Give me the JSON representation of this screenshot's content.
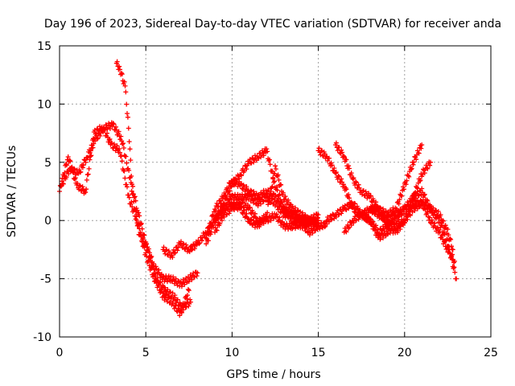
{
  "chart_data": {
    "type": "scatter",
    "title": "Day 196 of 2023, Sidereal Day-to-day VTEC variation (SDTVAR) for receiver anda",
    "xlabel": "GPS time / hours",
    "ylabel": "SDTVAR / TECUs",
    "xlim": [
      0,
      25
    ],
    "ylim": [
      -10,
      15
    ],
    "xticks": [
      0,
      5,
      10,
      15,
      20,
      25
    ],
    "yticks": [
      -10,
      -5,
      0,
      5,
      10,
      15
    ],
    "xtick_labels": [
      "0",
      "5",
      "10",
      "15",
      "20",
      "25"
    ],
    "ytick_labels": [
      "-10",
      "-5",
      "0",
      "5",
      "10",
      "15"
    ],
    "grid": true,
    "marker": "+",
    "color": "#ff0000",
    "series": [
      {
        "name": "track-1",
        "x": [
          0.0,
          0.5,
          1.0,
          1.5,
          2.0,
          2.5,
          3.0,
          3.5,
          4.0,
          4.5,
          5.0,
          5.5,
          6.0,
          6.5,
          7.0,
          7.5
        ],
        "y": [
          2.5,
          5.5,
          3.0,
          2.5,
          7.5,
          8.0,
          6.5,
          6.0,
          2.0,
          0.0,
          -3.0,
          -5.0,
          -6.5,
          -7.0,
          -8.0,
          -6.0
        ]
      },
      {
        "name": "track-2",
        "x": [
          0.1,
          0.6,
          1.1,
          1.6,
          2.1,
          2.6,
          3.1,
          3.6,
          4.1,
          4.6,
          5.1,
          5.6,
          6.1,
          6.6,
          7.1,
          7.6
        ],
        "y": [
          3.0,
          4.5,
          4.0,
          5.5,
          7.0,
          8.0,
          8.2,
          7.0,
          3.5,
          -1.0,
          -2.5,
          -5.0,
          -6.0,
          -6.5,
          -7.5,
          -7.0
        ]
      },
      {
        "name": "track-3",
        "x": [
          3.3,
          3.5,
          3.8,
          4.0,
          4.2,
          4.5,
          5.0,
          5.5,
          6.0,
          6.5,
          7.0,
          7.5,
          8.0
        ],
        "y": [
          13.5,
          13.0,
          11.5,
          8.0,
          3.0,
          1.0,
          -2.0,
          -4.0,
          -5.0,
          -5.0,
          -5.5,
          -5.0,
          -4.5
        ]
      },
      {
        "name": "track-4",
        "x": [
          6.0,
          6.5,
          7.0,
          7.5,
          8.0,
          8.5,
          9.0,
          9.5,
          10.0,
          10.5,
          11.0,
          11.5,
          12.0,
          12.5,
          13.0,
          13.5,
          14.0,
          14.5,
          15.0
        ],
        "y": [
          -2.5,
          -3.0,
          -2.0,
          -2.5,
          -2.0,
          -1.0,
          0.0,
          1.0,
          2.0,
          2.0,
          2.0,
          1.5,
          2.0,
          1.5,
          0.5,
          0.5,
          0.0,
          0.0,
          0.0
        ]
      },
      {
        "name": "track-5",
        "x": [
          8.5,
          9.0,
          9.5,
          10.0,
          10.5,
          11.0,
          11.5,
          12.0,
          12.5,
          13.0,
          13.5,
          14.0,
          14.5,
          15.0
        ],
        "y": [
          -1.5,
          1.0,
          2.0,
          3.5,
          3.0,
          2.5,
          2.0,
          2.5,
          2.0,
          1.0,
          0.5,
          0.0,
          -0.3,
          0.0
        ]
      },
      {
        "name": "track-6",
        "x": [
          9.0,
          9.5,
          10.0,
          10.5,
          11.0,
          11.5,
          12.0,
          12.5,
          13.0,
          13.5,
          14.0,
          14.5,
          15.0
        ],
        "y": [
          0.0,
          1.5,
          3.0,
          4.0,
          5.0,
          5.5,
          6.0,
          3.0,
          1.0,
          0.0,
          -0.5,
          0.0,
          0.5
        ]
      },
      {
        "name": "track-7",
        "x": [
          8.5,
          9.0,
          9.5,
          10.0,
          10.5,
          11.0,
          11.5,
          12.0,
          12.5,
          13.0,
          13.5,
          14.0,
          14.5,
          15.0
        ],
        "y": [
          -2.0,
          0.0,
          1.0,
          1.5,
          1.0,
          0.0,
          -0.5,
          0.5,
          4.5,
          2.0,
          1.0,
          0.5,
          0.0,
          -0.5
        ]
      },
      {
        "name": "track-8",
        "x": [
          9.0,
          9.5,
          10.0,
          10.5,
          11.0,
          11.5,
          12.0,
          12.5,
          13.0,
          13.5,
          14.0,
          14.5,
          15.0,
          15.5
        ],
        "y": [
          -1.0,
          0.5,
          1.0,
          1.5,
          1.0,
          0.0,
          0.0,
          0.5,
          -0.5,
          -0.5,
          -0.3,
          -1.0,
          -0.5,
          -0.3
        ]
      },
      {
        "name": "track-9",
        "x": [
          15.0,
          15.5,
          16.0,
          16.5,
          17.0,
          17.5,
          18.0,
          18.5,
          19.0,
          19.5,
          20.0,
          20.5,
          21.0,
          21.5,
          22.0,
          22.5,
          23.0
        ],
        "y": [
          6.0,
          5.5,
          4.0,
          3.0,
          1.0,
          0.5,
          0.0,
          -1.0,
          -0.5,
          0.0,
          1.0,
          2.0,
          2.5,
          1.0,
          0.0,
          -2.0,
          -5.0
        ]
      },
      {
        "name": "track-10",
        "x": [
          16.0,
          16.5,
          17.0,
          17.5,
          18.0,
          18.5,
          19.0,
          19.5,
          20.0,
          20.5,
          21.0
        ],
        "y": [
          6.5,
          5.5,
          3.5,
          2.5,
          2.0,
          1.0,
          0.5,
          1.0,
          3.0,
          5.0,
          6.5
        ]
      },
      {
        "name": "track-11",
        "x": [
          16.5,
          17.0,
          17.5,
          18.0,
          18.5,
          19.0,
          19.5,
          20.0,
          20.5,
          21.0,
          21.5
        ],
        "y": [
          -1.0,
          0.0,
          0.5,
          1.0,
          1.0,
          -0.5,
          -1.0,
          0.0,
          2.0,
          4.0,
          5.0
        ]
      },
      {
        "name": "track-12",
        "x": [
          15.5,
          16.0,
          16.5,
          17.0,
          17.5,
          18.0,
          18.5,
          19.0,
          19.5,
          20.0,
          20.5,
          21.0,
          21.5,
          22.0,
          22.5,
          22.8
        ],
        "y": [
          0.0,
          0.5,
          1.0,
          1.5,
          0.5,
          0.0,
          -1.5,
          -1.0,
          -0.5,
          0.0,
          1.0,
          1.5,
          1.0,
          0.5,
          -1.0,
          -2.5
        ]
      },
      {
        "name": "track-13",
        "x": [
          18.0,
          18.5,
          19.0,
          19.5,
          20.0,
          20.5,
          21.0,
          21.5,
          22.0,
          22.5,
          22.9
        ],
        "y": [
          1.0,
          0.5,
          0.0,
          0.5,
          1.0,
          1.5,
          1.5,
          0.0,
          -1.0,
          -2.5,
          -3.5
        ]
      }
    ]
  }
}
